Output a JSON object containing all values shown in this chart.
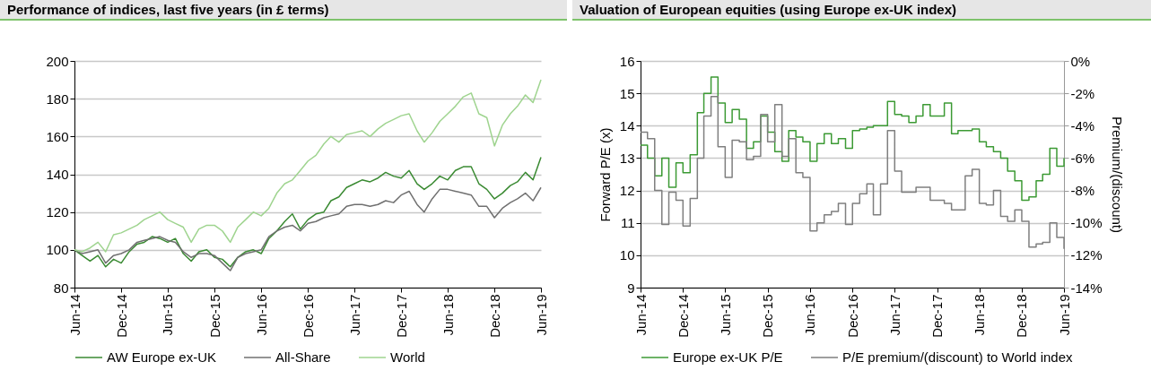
{
  "chart_data": [
    {
      "type": "line",
      "title": "Performance of indices, last five years (in £ terms)",
      "x": [
        "2014-06",
        "2014-07",
        "2014-08",
        "2014-09",
        "2014-10",
        "2014-11",
        "2014-12",
        "2015-01",
        "2015-02",
        "2015-03",
        "2015-04",
        "2015-05",
        "2015-06",
        "2015-07",
        "2015-08",
        "2015-09",
        "2015-10",
        "2015-11",
        "2015-12",
        "2016-01",
        "2016-02",
        "2016-03",
        "2016-04",
        "2016-05",
        "2016-06",
        "2016-07",
        "2016-08",
        "2016-09",
        "2016-10",
        "2016-11",
        "2016-12",
        "2017-01",
        "2017-02",
        "2017-03",
        "2017-04",
        "2017-05",
        "2017-06",
        "2017-07",
        "2017-08",
        "2017-09",
        "2017-10",
        "2017-11",
        "2017-12",
        "2018-01",
        "2018-02",
        "2018-03",
        "2018-04",
        "2018-05",
        "2018-06",
        "2018-07",
        "2018-08",
        "2018-09",
        "2018-10",
        "2018-11",
        "2018-12",
        "2019-01",
        "2019-02",
        "2019-03",
        "2019-04",
        "2019-05",
        "2019-06"
      ],
      "series": [
        {
          "name": "AW Europe ex-UK",
          "color": "#3a8a32",
          "values": [
            100,
            97,
            94,
            97,
            91,
            95,
            93,
            99,
            103,
            104,
            107,
            106,
            104,
            106,
            98,
            94,
            99,
            100,
            96,
            95,
            91,
            96,
            99,
            100,
            98,
            106,
            110,
            115,
            119,
            111,
            116,
            119,
            120,
            126,
            128,
            133,
            135,
            137,
            136,
            138,
            141,
            139,
            138,
            142,
            135,
            132,
            135,
            139,
            137,
            142,
            144,
            144,
            135,
            132,
            127,
            130,
            134,
            136,
            141,
            137,
            149
          ]
        },
        {
          "name": "All-Share",
          "color": "#707070",
          "values": [
            100,
            98,
            99,
            100,
            93,
            97,
            98,
            100,
            104,
            105,
            106,
            107,
            105,
            104,
            99,
            96,
            98,
            98,
            97,
            93,
            89,
            96,
            98,
            99,
            100,
            107,
            110,
            112,
            113,
            110,
            114,
            115,
            117,
            118,
            119,
            123,
            124,
            124,
            123,
            124,
            126,
            125,
            129,
            131,
            124,
            120,
            127,
            132,
            132,
            131,
            130,
            129,
            123,
            123,
            117,
            122,
            125,
            127,
            130,
            126,
            133
          ]
        },
        {
          "name": "World",
          "color": "#9fd48f",
          "values": [
            100,
            99,
            101,
            104,
            99,
            108,
            109,
            111,
            113,
            116,
            118,
            120,
            116,
            114,
            112,
            104,
            111,
            113,
            113,
            110,
            104,
            112,
            116,
            120,
            118,
            122,
            130,
            135,
            137,
            142,
            147,
            150,
            156,
            160,
            157,
            161,
            162,
            163,
            160,
            164,
            167,
            169,
            171,
            172,
            163,
            157,
            162,
            168,
            172,
            176,
            181,
            183,
            172,
            170,
            155,
            166,
            172,
            176,
            182,
            178,
            190
          ]
        }
      ],
      "xlim": [
        "2014-06",
        "2019-06"
      ],
      "xticks": [
        {
          "value": "2014-06",
          "label": "Jun-14"
        },
        {
          "value": "2014-12",
          "label": "Dec-14"
        },
        {
          "value": "2015-06",
          "label": "Jun-15"
        },
        {
          "value": "2015-12",
          "label": "Dec-15"
        },
        {
          "value": "2016-06",
          "label": "Jun-16"
        },
        {
          "value": "2016-12",
          "label": "Dec-16"
        },
        {
          "value": "2017-06",
          "label": "Jun-17"
        },
        {
          "value": "2017-12",
          "label": "Dec-17"
        },
        {
          "value": "2018-06",
          "label": "Jun-18"
        },
        {
          "value": "2018-12",
          "label": "Dec-18"
        },
        {
          "value": "2019-06",
          "label": "Jun-19"
        }
      ],
      "ylim": [
        80,
        200
      ],
      "yticks": [
        80,
        100,
        120,
        140,
        160,
        180,
        200
      ],
      "grid": "y",
      "legend": "bottom"
    },
    {
      "type": "step",
      "title": "Valuation of European equities (using Europe ex-UK index)",
      "ylabel": "Forward P/E (x)",
      "y2label": "Premium/(discount)",
      "x": [
        "2014-06",
        "2014-07",
        "2014-08",
        "2014-09",
        "2014-10",
        "2014-11",
        "2014-12",
        "2015-01",
        "2015-02",
        "2015-03",
        "2015-04",
        "2015-05",
        "2015-06",
        "2015-07",
        "2015-08",
        "2015-09",
        "2015-10",
        "2015-11",
        "2015-12",
        "2016-01",
        "2016-02",
        "2016-03",
        "2016-04",
        "2016-05",
        "2016-06",
        "2016-07",
        "2016-08",
        "2016-09",
        "2016-10",
        "2016-11",
        "2016-12",
        "2017-01",
        "2017-02",
        "2017-03",
        "2017-04",
        "2017-05",
        "2017-06",
        "2017-07",
        "2017-08",
        "2017-09",
        "2017-10",
        "2017-11",
        "2017-12",
        "2018-01",
        "2018-02",
        "2018-03",
        "2018-04",
        "2018-05",
        "2018-06",
        "2018-07",
        "2018-08",
        "2018-09",
        "2018-10",
        "2018-11",
        "2018-12",
        "2019-01",
        "2019-02",
        "2019-03",
        "2019-04",
        "2019-05",
        "2019-06"
      ],
      "series": [
        {
          "name": "Europe ex-UK P/E",
          "color": "#3c9a34",
          "values": [
            13.4,
            13.0,
            12.45,
            13.0,
            12.1,
            12.85,
            12.55,
            13.1,
            14.4,
            15.0,
            15.5,
            14.7,
            14.1,
            14.5,
            14.2,
            13.3,
            13.5,
            14.3,
            13.8,
            13.2,
            12.9,
            13.85,
            13.65,
            13.5,
            12.9,
            13.45,
            13.75,
            13.45,
            13.6,
            13.3,
            13.85,
            13.9,
            13.95,
            14.0,
            14.0,
            14.75,
            14.35,
            14.3,
            14.1,
            14.3,
            14.65,
            14.3,
            14.3,
            14.7,
            13.75,
            13.85,
            13.85,
            13.9,
            13.5,
            13.35,
            13.2,
            13.0,
            12.6,
            12.3,
            11.7,
            11.8,
            12.3,
            12.5,
            13.3,
            12.75,
            13.0
          ]
        },
        {
          "name": "P/E premium/(discount) to World index",
          "color": "#7f7f7f",
          "axis": "y2",
          "values": [
            -4.4,
            -4.8,
            -8,
            -10.1,
            -8.1,
            -8.6,
            -10.2,
            -8.5,
            -6,
            -3.4,
            -2.2,
            -5.3,
            -7.2,
            -4.9,
            -5,
            -6.1,
            -5.9,
            -3.3,
            -5,
            -2.7,
            -5.9,
            -4.8,
            -6.9,
            -7.2,
            -10.5,
            -10,
            -9.5,
            -9.3,
            -8.8,
            -10.1,
            -8.8,
            -8.2,
            -7.6,
            -9.5,
            -7.6,
            -4.3,
            -6.8,
            -8.1,
            -8.1,
            -7.8,
            -7.8,
            -8.6,
            -8.6,
            -8.8,
            -9.2,
            -9.2,
            -7.1,
            -6.7,
            -8.8,
            -8.9,
            -8,
            -9.6,
            -9.9,
            -9.2,
            -9.9,
            -11.5,
            -11.3,
            -11.2,
            -10,
            -10.9,
            -11.6
          ]
        }
      ],
      "xlim": [
        "2014-06",
        "2019-06"
      ],
      "xticks": [
        {
          "value": "2014-06",
          "label": "Jun-14"
        },
        {
          "value": "2014-12",
          "label": "Dec-14"
        },
        {
          "value": "2015-06",
          "label": "Jun-15"
        },
        {
          "value": "2015-12",
          "label": "Dec-15"
        },
        {
          "value": "2016-06",
          "label": "Jun-16"
        },
        {
          "value": "2016-12",
          "label": "Dec-16"
        },
        {
          "value": "2017-06",
          "label": "Jun-17"
        },
        {
          "value": "2017-12",
          "label": "Dec-17"
        },
        {
          "value": "2018-06",
          "label": "Jun-18"
        },
        {
          "value": "2018-12",
          "label": "Dec-18"
        },
        {
          "value": "2019-06",
          "label": "Jun-19"
        }
      ],
      "ylim": [
        9,
        16
      ],
      "yticks": [
        9,
        10,
        11,
        12,
        13,
        14,
        15,
        16
      ],
      "y2lim": [
        -14,
        0
      ],
      "y2ticks": [
        {
          "value": -14,
          "label": "-14%"
        },
        {
          "value": -12,
          "label": "-12%"
        },
        {
          "value": -10,
          "label": "-10%"
        },
        {
          "value": -8,
          "label": "-8%"
        },
        {
          "value": -6,
          "label": "-6%"
        },
        {
          "value": -4,
          "label": "-4%"
        },
        {
          "value": -2,
          "label": "-2%"
        },
        {
          "value": 0,
          "label": "0%"
        }
      ],
      "grid": "y",
      "legend": "bottom"
    }
  ]
}
